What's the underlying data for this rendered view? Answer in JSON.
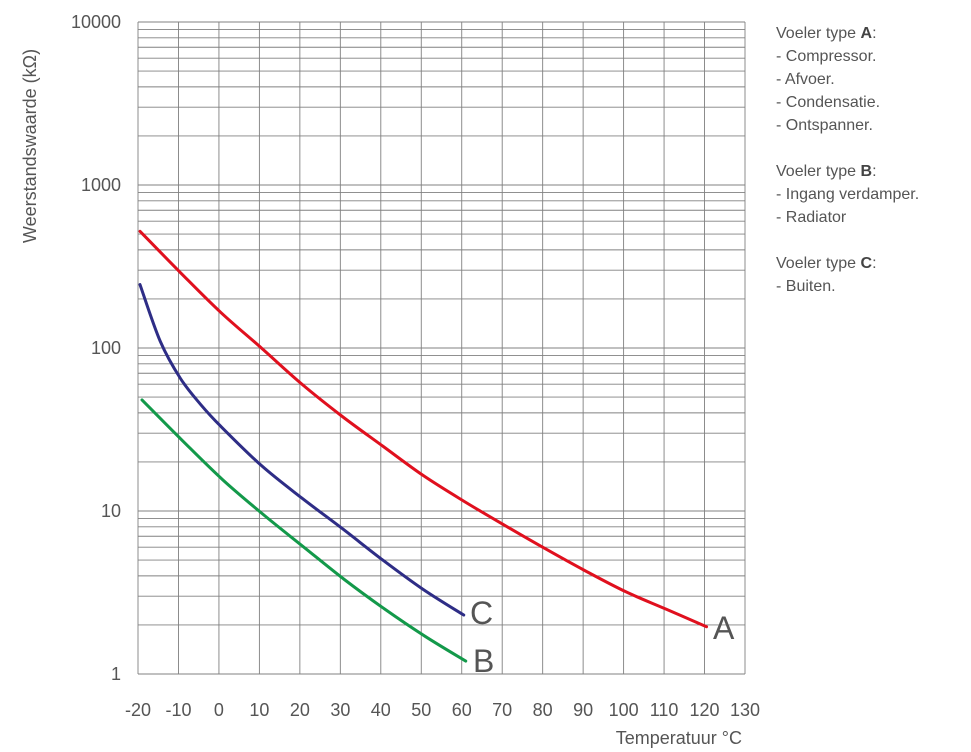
{
  "chart_data": {
    "type": "line",
    "xlabel": "Temperatuur  °C",
    "ylabel": "Weerstandswaarde (kΩ)",
    "xlim": [
      -20,
      130
    ],
    "ylim": [
      1,
      10000
    ],
    "yscale": "log",
    "grid": true,
    "x_ticks": [
      "-20",
      "-10",
      "0",
      "10",
      "20",
      "30",
      "40",
      "50",
      "60",
      "70",
      "80",
      "90",
      "100",
      "110",
      "120",
      "130"
    ],
    "y_ticks": [
      "1",
      "10",
      "100",
      "1000",
      "10000"
    ],
    "series": [
      {
        "name": "A",
        "color": "#e0101e",
        "x": [
          -20,
          -10,
          0,
          10,
          20,
          30,
          40,
          50,
          60,
          70,
          80,
          90,
          100,
          110,
          120
        ],
        "y": [
          520,
          290,
          165,
          100,
          60,
          38,
          25,
          16.5,
          11.5,
          8.2,
          5.9,
          4.3,
          3.2,
          2.5,
          1.95
        ]
      },
      {
        "name": "B",
        "color": "#13994a",
        "x": [
          -20,
          -10,
          0,
          10,
          20,
          30,
          40,
          50,
          60
        ],
        "y": [
          48,
          27,
          15.5,
          9.5,
          6,
          3.8,
          2.5,
          1.7,
          1.2
        ]
      },
      {
        "name": "C",
        "color": "#2e2d86",
        "x": [
          -20,
          -15,
          -10,
          -5,
          0,
          10,
          20,
          30,
          40,
          50,
          60
        ],
        "y": [
          245,
          110,
          65,
          45,
          33,
          19,
          12,
          7.8,
          5,
          3.3,
          2.3
        ]
      }
    ]
  },
  "curve_labels": {
    "A": "A",
    "B": "B",
    "C": "C"
  },
  "legend": [
    {
      "prefix": "Voeler type ",
      "letter": "A",
      "suffix": ":",
      "items": [
        "- Compressor.",
        "- Afvoer.",
        "- Condensatie.",
        "- Ontspanner."
      ]
    },
    {
      "prefix": "Voeler type ",
      "letter": "B",
      "suffix": ":",
      "items": [
        "- Ingang verdamper.",
        "- Radiator"
      ]
    },
    {
      "prefix": "Voeler type ",
      "letter": "C",
      "suffix": ":",
      "items": [
        "- Buiten."
      ]
    }
  ]
}
